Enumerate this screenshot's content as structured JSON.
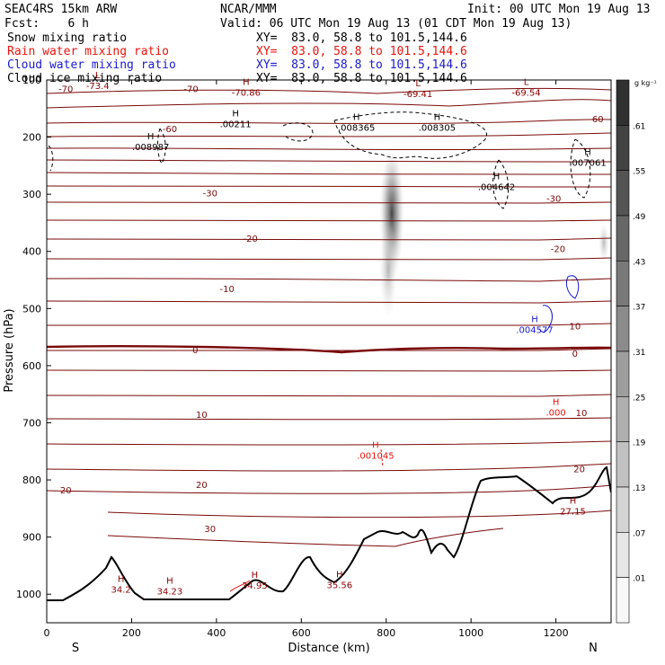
{
  "header": {
    "model": "SEAC4RS 15km ARW",
    "forecast": "Fcst:    6 h",
    "center": "NCAR/MMM",
    "init": "Init: 00 UTC Mon 19 Aug 13",
    "valid": "Valid: 06 UTC Mon 19 Aug 13 (01 CDT Mon 19 Aug 13)",
    "fields": [
      {
        "label": "Snow mixing ratio",
        "xy": "XY=  83.0, 58.8 to 101.5,144.6",
        "color": "#000000"
      },
      {
        "label": "Rain water mixing ratio",
        "xy": "XY=  83.0, 58.8 to 101.5,144.6",
        "color": "#e8140c"
      },
      {
        "label": "Cloud water mixing ratio",
        "xy": "XY=  83.0, 58.8 to 101.5,144.6",
        "color": "#1a1ad0"
      },
      {
        "label": "Cloud ice mixing ratio",
        "xy": "XY=  83.0, 58.8 to 101.5,144.6",
        "color": "#000000"
      }
    ]
  },
  "chart_data": {
    "type": "cross-section",
    "xlabel": "Distance (km)",
    "ylabel": "Pressure (hPa)",
    "xlim": [
      0,
      1330
    ],
    "ylim": [
      1050,
      100
    ],
    "x_ticks": [
      0,
      200,
      400,
      600,
      800,
      1000,
      1200
    ],
    "y_ticks": [
      100,
      200,
      300,
      400,
      500,
      600,
      700,
      800,
      900,
      1000
    ],
    "ends": {
      "left": "S",
      "right": "N"
    },
    "colorbar": {
      "unit": "g kg⁻¹",
      "ticks": [
        ".01",
        ".07",
        ".13",
        ".19",
        ".25",
        ".31",
        ".37",
        ".43",
        ".49",
        ".55",
        ".61"
      ]
    },
    "temperature_labels": [
      {
        "text": "-70",
        "x": 45,
        "p": 115
      },
      {
        "text": "-70",
        "x": 340,
        "p": 115
      },
      {
        "text": "-60",
        "x": 290,
        "p": 185
      },
      {
        "text": "-60",
        "x": 1295,
        "p": 168
      },
      {
        "text": "-30",
        "x": 385,
        "p": 297
      },
      {
        "text": "-30",
        "x": 1195,
        "p": 307
      },
      {
        "text": "-20",
        "x": 480,
        "p": 377
      },
      {
        "text": "-20",
        "x": 1205,
        "p": 395
      },
      {
        "text": "-10",
        "x": 425,
        "p": 465
      },
      {
        "text": "10",
        "x": 1245,
        "p": 530
      },
      {
        "text": "0",
        "x": 350,
        "p": 572
      },
      {
        "text": "0",
        "x": 1245,
        "p": 578
      },
      {
        "text": "10",
        "x": 365,
        "p": 685
      },
      {
        "text": "10",
        "x": 1260,
        "p": 682
      },
      {
        "text": "20",
        "x": 45,
        "p": 817
      },
      {
        "text": "20",
        "x": 365,
        "p": 808
      },
      {
        "text": "20",
        "x": 1255,
        "p": 780
      },
      {
        "text": "30",
        "x": 385,
        "p": 885
      }
    ],
    "extremes": [
      {
        "type": "L",
        "value": "-73.4",
        "x": 120,
        "p": 103,
        "color": "#8b0000"
      },
      {
        "type": "H",
        "value": "-70.86",
        "x": 470,
        "p": 115,
        "color": "#8b0000"
      },
      {
        "type": "L",
        "value": "-69.41",
        "x": 875,
        "p": 117,
        "color": "#8b0000"
      },
      {
        "type": "L",
        "value": "-69.54",
        "x": 1130,
        "p": 115,
        "color": "#8b0000"
      },
      {
        "type": "H",
        "value": ".00211",
        "x": 445,
        "p": 170,
        "color": "#000000"
      },
      {
        "type": "H",
        "value": ".008987",
        "x": 245,
        "p": 210,
        "color": "#000000"
      },
      {
        "type": "H",
        "value": ".008365",
        "x": 730,
        "p": 176,
        "color": "#000000"
      },
      {
        "type": "H",
        "value": ".008305",
        "x": 920,
        "p": 176,
        "color": "#000000"
      },
      {
        "type": "H",
        "value": ".007061",
        "x": 1275,
        "p": 238,
        "color": "#000000"
      },
      {
        "type": "H",
        "value": ".004642",
        "x": 1060,
        "p": 280,
        "color": "#000000"
      },
      {
        "type": "H",
        "value": ".004577",
        "x": 1150,
        "p": 530,
        "color": "#1a1ad0"
      },
      {
        "type": "H",
        "value": ".000",
        "x": 1200,
        "p": 675,
        "color": "#e8140c"
      },
      {
        "type": "H",
        "value": ".001045",
        "x": 775,
        "p": 750,
        "color": "#e8140c"
      },
      {
        "type": "H",
        "value": "27.15",
        "x": 1240,
        "p": 848,
        "color": "#8b0000"
      },
      {
        "type": "H",
        "value": "34.2",
        "x": 175,
        "p": 985,
        "color": "#8b0000"
      },
      {
        "type": "H",
        "value": "34.23",
        "x": 290,
        "p": 988,
        "color": "#8b0000"
      },
      {
        "type": "H",
        "value": "34.95",
        "x": 490,
        "p": 978,
        "color": "#8b0000"
      },
      {
        "type": "H",
        "value": "35.56",
        "x": 690,
        "p": 977,
        "color": "#8b0000"
      }
    ]
  }
}
